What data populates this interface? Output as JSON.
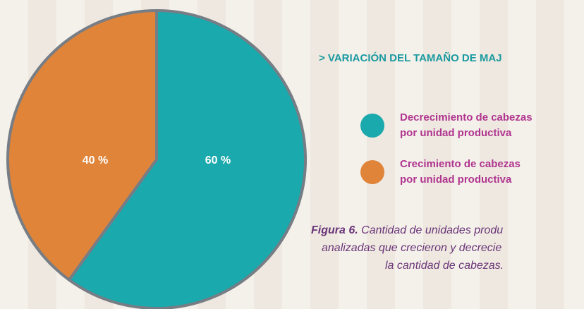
{
  "chart_data": {
    "type": "pie",
    "title": "> VARIACIÓN DEL TAMAÑO DE MAJ",
    "series": [
      {
        "name": "Decrecimiento de cabezas por unidad productiva",
        "color": "#1aa9ac",
        "values": [
          60
        ],
        "value_labels": [
          "60 %"
        ]
      },
      {
        "name": "Crecimiento de cabezas por unidad productiva",
        "color": "#e0843a",
        "values": [
          40
        ],
        "value_labels": [
          "40 %"
        ]
      }
    ],
    "caption": {
      "label": "Figura 6.",
      "lines": [
        "Cantidad de unidades produ",
        "analizadas que crecieron y decrecie",
        "la cantidad de cabezas."
      ]
    }
  }
}
